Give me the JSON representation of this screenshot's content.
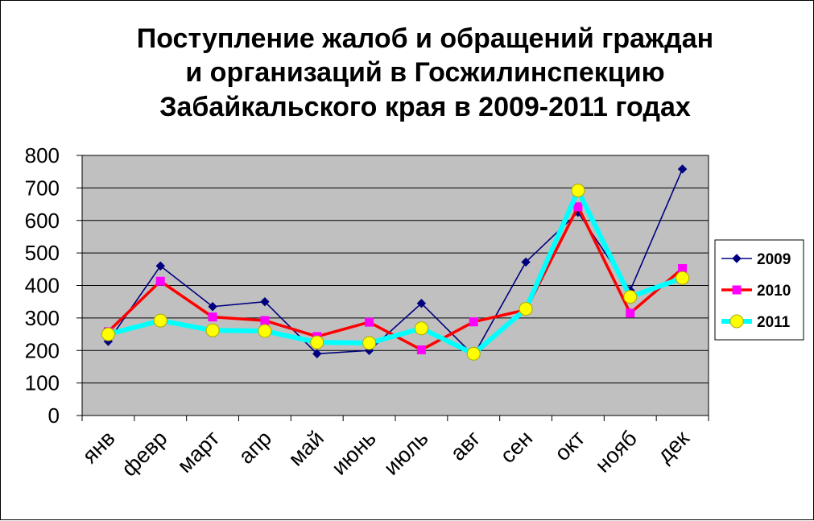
{
  "chart_data": {
    "type": "line",
    "title_lines": [
      "Поступление жалоб и обращений граждан",
      "и организаций в Госжилинспекцию",
      "Забайкальского края в 2009-2011 годах"
    ],
    "categories": [
      "янв",
      "февр",
      "март",
      "апр",
      "май",
      "июнь",
      "июль",
      "авг",
      "сен",
      "окт",
      "нояб",
      "дек"
    ],
    "yticks": [
      "0",
      "100",
      "200",
      "300",
      "400",
      "500",
      "600",
      "700",
      "800"
    ],
    "ylim": [
      0,
      800
    ],
    "grid": true,
    "legend_position": "right",
    "plot_background": "#c0c0c0",
    "series": [
      {
        "name": "2009",
        "values": [
          228,
          460,
          335,
          350,
          190,
          200,
          345,
          185,
          472,
          625,
          385,
          758
        ],
        "color": "#00007f",
        "marker": "diamond"
      },
      {
        "name": "2010",
        "values": [
          258,
          413,
          303,
          292,
          243,
          287,
          202,
          288,
          325,
          642,
          315,
          452
        ],
        "color": "#ff0000",
        "marker": "square",
        "marker_color": "#ff00ff"
      },
      {
        "name": "2011",
        "values": [
          250,
          292,
          262,
          260,
          225,
          223,
          268,
          190,
          328,
          692,
          365,
          423
        ],
        "color": "#00ffff",
        "marker": "circle",
        "marker_color": "#ffff00"
      }
    ]
  }
}
